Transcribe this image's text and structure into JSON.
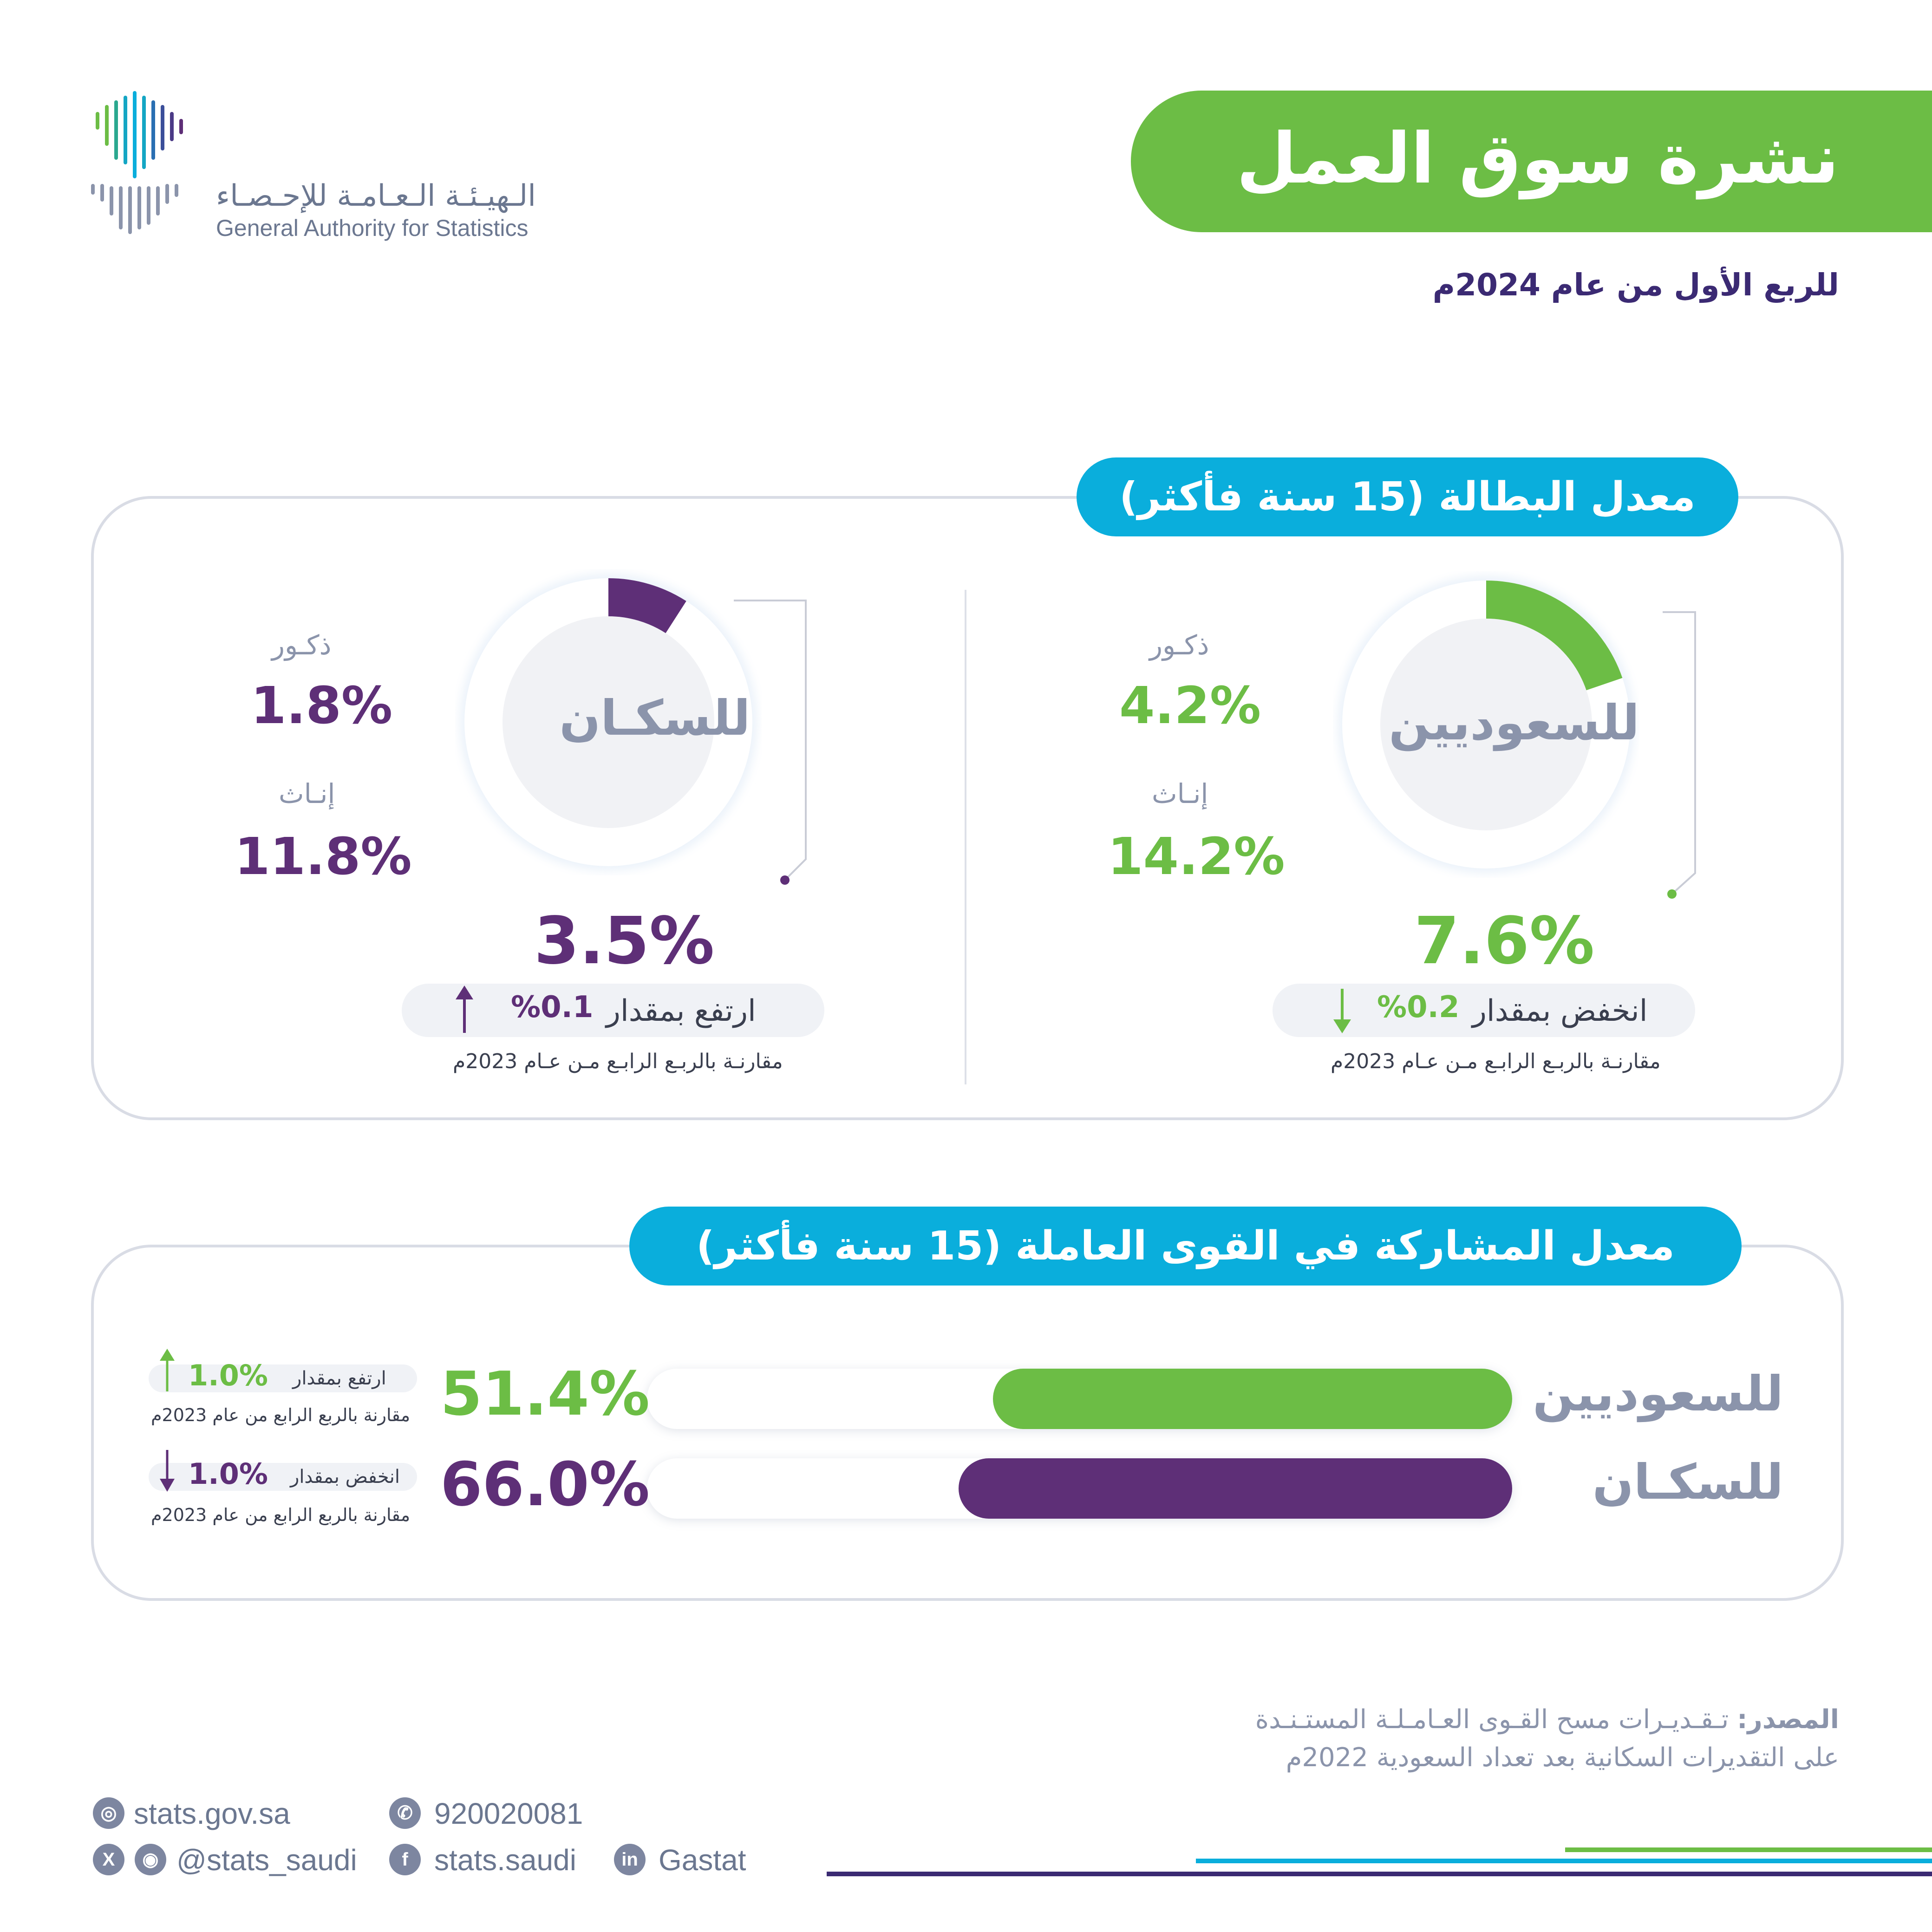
{
  "header": {
    "title": "نشرة سوق العمل",
    "subtitle": "للربع الأول من عام 2024م",
    "logo_ar": "الـهيـئـة الـعـامـة للإحـصـاء",
    "logo_en": "General Authority for Statistics"
  },
  "unemployment": {
    "section_title": "معدل البطالة (15 سنة فأكثر)",
    "saudis": {
      "label": "للسعوديين",
      "rate": "7.6%",
      "rate_value": 7.6,
      "males_label": "ذكـور",
      "males": "4.2%",
      "females_label": "إنـاث",
      "females": "14.2%",
      "change_text": "انخفض بمقدار",
      "change_value": "%0.2",
      "change_dir": "down",
      "compare": "مقارنـة بالربـع الرابـع مـن عـام 2023م"
    },
    "population": {
      "label": "للسكـان",
      "rate": "3.5%",
      "rate_value": 3.5,
      "males_label": "ذكـور",
      "males": "1.8%",
      "females_label": "إنـاث",
      "females": "11.8%",
      "change_text": "ارتفع بمقدار",
      "change_value": "%0.1",
      "change_dir": "up",
      "compare": "مقارنـة بالربـع الرابـع مـن عـام 2023م"
    }
  },
  "participation": {
    "section_title": "معدل المشاركة في القوى العاملة (15 سنة فأكثر)",
    "rows": [
      {
        "label": "للسعوديين",
        "value": "51.4%",
        "value_num": 51.4,
        "change_text": "ارتفع بمقدار",
        "change_value": "1.0%",
        "change_dir": "up",
        "compare": "مقارنة بالربع الرابع من عام 2023م"
      },
      {
        "label": "للسكـان",
        "value": "66.0%",
        "value_num": 66.0,
        "change_text": "انخفض بمقدار",
        "change_value": "1.0%",
        "change_dir": "down",
        "compare": "مقارنة بالربع الرابع من عام 2023م"
      }
    ]
  },
  "footer": {
    "source_label": "المصدر:",
    "source_line1": "تـقـديـرات مسح القـوى العـامـلـة المستـنـدة",
    "source_line2": "على التقديرات السكانية بعد تعداد السعودية 2022م",
    "website": "stats.gov.sa",
    "phone": "920020081",
    "social_handle": "@stats_saudi",
    "facebook": "stats.saudi",
    "linkedin": "Gastat"
  },
  "colors": {
    "green": "#6cbd45",
    "purple": "#5e2f77",
    "blue": "#0aaedc",
    "navy": "#3b2a73"
  }
}
